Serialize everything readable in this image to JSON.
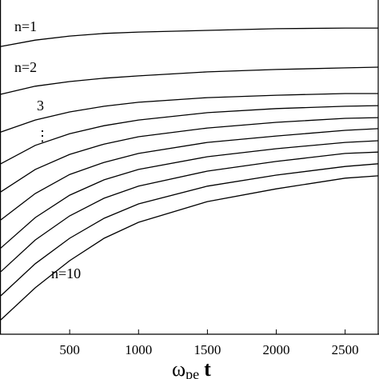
{
  "chart_data": {
    "type": "line",
    "xlabel": {
      "main": "ω",
      "sub": "pe",
      "tail": "t"
    },
    "x": [
      0,
      250,
      500,
      750,
      1000,
      1500,
      2000,
      2500,
      2740
    ],
    "xlim": [
      0,
      2740
    ],
    "xticks": [
      500,
      1000,
      1500,
      2000,
      2500
    ],
    "ylim": [
      0,
      100
    ],
    "color": "#000000",
    "annotations": [
      "⋮"
    ],
    "series": [
      {
        "name": "n=1",
        "values": [
          86.1,
          88.0,
          89.2,
          90.0,
          90.4,
          90.9,
          91.4,
          91.6,
          91.6
        ]
      },
      {
        "name": "n=2",
        "values": [
          71.8,
          74.2,
          75.6,
          76.6,
          77.3,
          78.5,
          79.2,
          79.7,
          79.9
        ]
      },
      {
        "name": "3",
        "values": [
          60.5,
          64.1,
          66.5,
          68.2,
          69.4,
          70.8,
          71.5,
          72.0,
          72.0
        ]
      },
      {
        "name": null,
        "values": [
          51.0,
          56.5,
          60.0,
          62.4,
          64.1,
          66.3,
          67.5,
          68.2,
          68.4
        ]
      },
      {
        "name": null,
        "values": [
          42.6,
          49.3,
          53.8,
          56.9,
          59.1,
          61.7,
          63.4,
          64.6,
          64.8
        ]
      },
      {
        "name": null,
        "values": [
          34.2,
          42.1,
          47.8,
          51.4,
          54.1,
          57.4,
          59.3,
          61.0,
          61.5
        ]
      },
      {
        "name": null,
        "values": [
          25.8,
          34.9,
          41.6,
          46.2,
          49.3,
          53.1,
          55.5,
          57.4,
          57.9
        ]
      },
      {
        "name": null,
        "values": [
          18.7,
          28.2,
          35.4,
          40.7,
          44.3,
          48.8,
          51.7,
          54.1,
          54.5
        ]
      },
      {
        "name": null,
        "values": [
          11.5,
          21.1,
          28.7,
          34.7,
          39.0,
          44.3,
          47.6,
          50.2,
          51.0
        ]
      },
      {
        "name": "n=10",
        "values": [
          4.3,
          13.9,
          22.0,
          28.7,
          33.5,
          39.7,
          43.5,
          46.7,
          47.4
        ]
      }
    ]
  }
}
